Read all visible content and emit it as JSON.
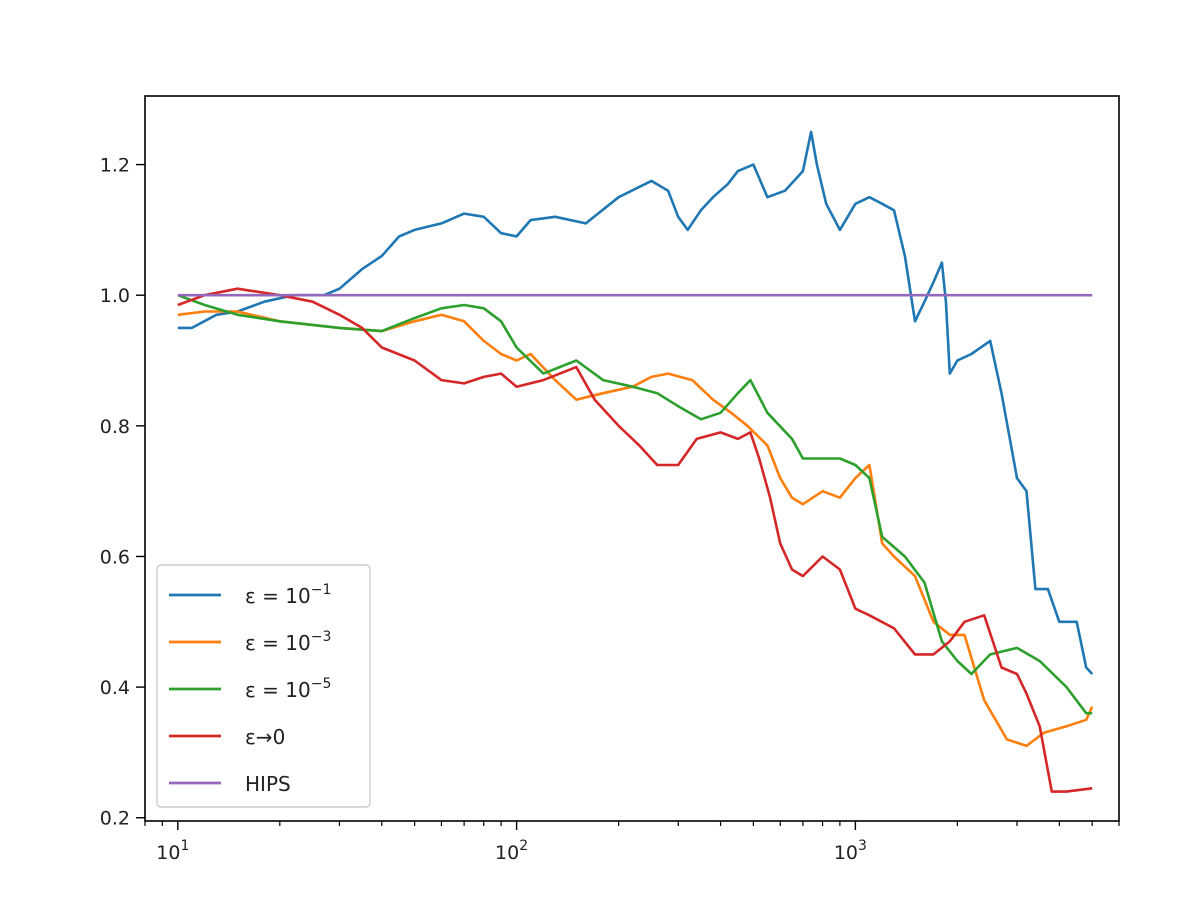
{
  "chart_data": {
    "type": "line",
    "title": "",
    "xlabel": "",
    "ylabel": "",
    "xscale": "log",
    "xlim": [
      8,
      6000
    ],
    "ylim": [
      0.195,
      1.305
    ],
    "x_major_ticks": [
      {
        "value": 10,
        "base": "10",
        "exp": "1"
      },
      {
        "value": 100,
        "base": "10",
        "exp": "2"
      },
      {
        "value": 1000,
        "base": "10",
        "exp": "3"
      }
    ],
    "y_ticks": [
      {
        "value": 0.2,
        "label": "0.2"
      },
      {
        "value": 0.4,
        "label": "0.4"
      },
      {
        "value": 0.6,
        "label": "0.6"
      },
      {
        "value": 0.8,
        "label": "0.8"
      },
      {
        "value": 1.0,
        "label": "1.0"
      },
      {
        "value": 1.2,
        "label": "1.2"
      }
    ],
    "grid": false,
    "legend": {
      "position": "lower-left",
      "entries": [
        {
          "label": "ε = 10",
          "sup": "−1",
          "color": "#1f77b4"
        },
        {
          "label": "ε = 10",
          "sup": "−3",
          "color": "#ff7f0e"
        },
        {
          "label": "ε = 10",
          "sup": "−5",
          "color": "#2ca02c"
        },
        {
          "label": "ε→0",
          "sup": "",
          "color": "#d62728"
        },
        {
          "label": "HIPS",
          "sup": "",
          "color": "#9467bd"
        }
      ]
    },
    "series": [
      {
        "color": "#1f77b4",
        "points": [
          [
            10,
            0.95
          ],
          [
            11,
            0.95
          ],
          [
            13,
            0.97
          ],
          [
            15,
            0.975
          ],
          [
            18,
            0.99
          ],
          [
            22,
            1.0
          ],
          [
            27,
            1.0
          ],
          [
            30,
            1.01
          ],
          [
            35,
            1.04
          ],
          [
            40,
            1.06
          ],
          [
            45,
            1.09
          ],
          [
            50,
            1.1
          ],
          [
            60,
            1.11
          ],
          [
            70,
            1.125
          ],
          [
            80,
            1.12
          ],
          [
            90,
            1.095
          ],
          [
            100,
            1.09
          ],
          [
            110,
            1.115
          ],
          [
            130,
            1.12
          ],
          [
            160,
            1.11
          ],
          [
            200,
            1.15
          ],
          [
            250,
            1.175
          ],
          [
            280,
            1.16
          ],
          [
            300,
            1.12
          ],
          [
            320,
            1.1
          ],
          [
            350,
            1.13
          ],
          [
            380,
            1.15
          ],
          [
            420,
            1.17
          ],
          [
            450,
            1.19
          ],
          [
            500,
            1.2
          ],
          [
            550,
            1.15
          ],
          [
            620,
            1.16
          ],
          [
            700,
            1.19
          ],
          [
            740,
            1.25
          ],
          [
            770,
            1.2
          ],
          [
            820,
            1.14
          ],
          [
            900,
            1.1
          ],
          [
            1000,
            1.14
          ],
          [
            1100,
            1.15
          ],
          [
            1200,
            1.14
          ],
          [
            1300,
            1.13
          ],
          [
            1400,
            1.06
          ],
          [
            1500,
            0.96
          ],
          [
            1600,
            0.99
          ],
          [
            1700,
            1.02
          ],
          [
            1800,
            1.05
          ],
          [
            1850,
            0.99
          ],
          [
            1900,
            0.88
          ],
          [
            2000,
            0.9
          ],
          [
            2200,
            0.91
          ],
          [
            2500,
            0.93
          ],
          [
            2700,
            0.85
          ],
          [
            3000,
            0.72
          ],
          [
            3200,
            0.7
          ],
          [
            3400,
            0.55
          ],
          [
            3700,
            0.55
          ],
          [
            4000,
            0.5
          ],
          [
            4500,
            0.5
          ],
          [
            4800,
            0.43
          ],
          [
            5000,
            0.42
          ]
        ]
      },
      {
        "color": "#ff7f0e",
        "points": [
          [
            10,
            0.97
          ],
          [
            12,
            0.975
          ],
          [
            15,
            0.975
          ],
          [
            20,
            0.96
          ],
          [
            30,
            0.95
          ],
          [
            40,
            0.945
          ],
          [
            50,
            0.96
          ],
          [
            60,
            0.97
          ],
          [
            70,
            0.96
          ],
          [
            80,
            0.93
          ],
          [
            90,
            0.91
          ],
          [
            100,
            0.9
          ],
          [
            110,
            0.91
          ],
          [
            130,
            0.87
          ],
          [
            150,
            0.84
          ],
          [
            180,
            0.85
          ],
          [
            220,
            0.86
          ],
          [
            250,
            0.875
          ],
          [
            280,
            0.88
          ],
          [
            330,
            0.87
          ],
          [
            380,
            0.84
          ],
          [
            430,
            0.82
          ],
          [
            480,
            0.8
          ],
          [
            550,
            0.77
          ],
          [
            600,
            0.72
          ],
          [
            650,
            0.69
          ],
          [
            700,
            0.68
          ],
          [
            800,
            0.7
          ],
          [
            900,
            0.69
          ],
          [
            1000,
            0.72
          ],
          [
            1100,
            0.74
          ],
          [
            1200,
            0.62
          ],
          [
            1300,
            0.6
          ],
          [
            1500,
            0.57
          ],
          [
            1700,
            0.5
          ],
          [
            1900,
            0.48
          ],
          [
            2100,
            0.48
          ],
          [
            2400,
            0.38
          ],
          [
            2800,
            0.32
          ],
          [
            3200,
            0.31
          ],
          [
            3600,
            0.33
          ],
          [
            4200,
            0.34
          ],
          [
            4800,
            0.35
          ],
          [
            5000,
            0.37
          ]
        ]
      },
      {
        "color": "#2ca02c",
        "points": [
          [
            10,
            1.0
          ],
          [
            12,
            0.985
          ],
          [
            15,
            0.97
          ],
          [
            20,
            0.96
          ],
          [
            30,
            0.95
          ],
          [
            40,
            0.945
          ],
          [
            50,
            0.965
          ],
          [
            60,
            0.98
          ],
          [
            70,
            0.985
          ],
          [
            80,
            0.98
          ],
          [
            90,
            0.96
          ],
          [
            100,
            0.92
          ],
          [
            120,
            0.88
          ],
          [
            150,
            0.9
          ],
          [
            180,
            0.87
          ],
          [
            220,
            0.86
          ],
          [
            260,
            0.85
          ],
          [
            300,
            0.83
          ],
          [
            350,
            0.81
          ],
          [
            400,
            0.82
          ],
          [
            450,
            0.85
          ],
          [
            490,
            0.87
          ],
          [
            550,
            0.82
          ],
          [
            650,
            0.78
          ],
          [
            700,
            0.75
          ],
          [
            800,
            0.75
          ],
          [
            900,
            0.75
          ],
          [
            1000,
            0.74
          ],
          [
            1100,
            0.72
          ],
          [
            1200,
            0.63
          ],
          [
            1400,
            0.6
          ],
          [
            1600,
            0.56
          ],
          [
            1800,
            0.47
          ],
          [
            2000,
            0.44
          ],
          [
            2200,
            0.42
          ],
          [
            2500,
            0.45
          ],
          [
            3000,
            0.46
          ],
          [
            3500,
            0.44
          ],
          [
            4200,
            0.4
          ],
          [
            4800,
            0.36
          ],
          [
            5000,
            0.36
          ]
        ]
      },
      {
        "color": "#d62728",
        "points": [
          [
            10,
            0.985
          ],
          [
            12,
            1.0
          ],
          [
            15,
            1.01
          ],
          [
            20,
            1.0
          ],
          [
            25,
            0.99
          ],
          [
            30,
            0.97
          ],
          [
            35,
            0.95
          ],
          [
            40,
            0.92
          ],
          [
            50,
            0.9
          ],
          [
            60,
            0.87
          ],
          [
            70,
            0.865
          ],
          [
            80,
            0.875
          ],
          [
            90,
            0.88
          ],
          [
            100,
            0.86
          ],
          [
            120,
            0.87
          ],
          [
            150,
            0.89
          ],
          [
            170,
            0.84
          ],
          [
            200,
            0.8
          ],
          [
            230,
            0.77
          ],
          [
            260,
            0.74
          ],
          [
            300,
            0.74
          ],
          [
            340,
            0.78
          ],
          [
            400,
            0.79
          ],
          [
            450,
            0.78
          ],
          [
            490,
            0.79
          ],
          [
            520,
            0.75
          ],
          [
            560,
            0.69
          ],
          [
            600,
            0.62
          ],
          [
            650,
            0.58
          ],
          [
            700,
            0.57
          ],
          [
            800,
            0.6
          ],
          [
            900,
            0.58
          ],
          [
            1000,
            0.52
          ],
          [
            1100,
            0.51
          ],
          [
            1300,
            0.49
          ],
          [
            1500,
            0.45
          ],
          [
            1700,
            0.45
          ],
          [
            1900,
            0.47
          ],
          [
            2100,
            0.5
          ],
          [
            2400,
            0.51
          ],
          [
            2700,
            0.43
          ],
          [
            3000,
            0.42
          ],
          [
            3200,
            0.39
          ],
          [
            3500,
            0.34
          ],
          [
            3800,
            0.24
          ],
          [
            4200,
            0.24
          ],
          [
            5000,
            0.245
          ]
        ]
      },
      {
        "color": "#9467bd",
        "points": [
          [
            10,
            1.0
          ],
          [
            5000,
            1.0
          ]
        ]
      }
    ]
  }
}
